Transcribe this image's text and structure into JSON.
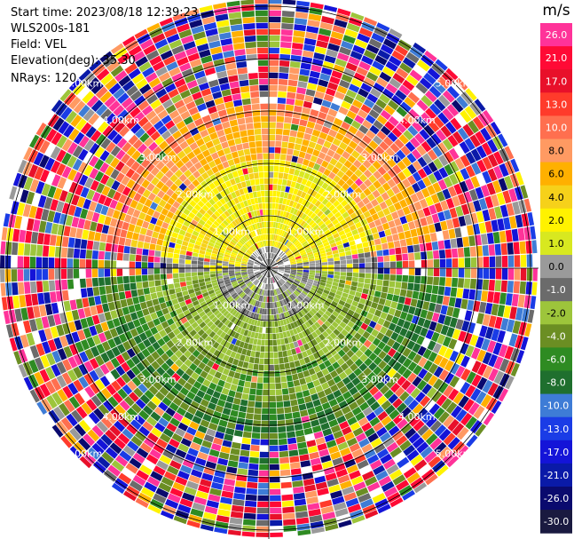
{
  "header": {
    "start_time": "Start time: 2023/08/18 12:39:23",
    "instrument": "WLS200s-181",
    "field": "Field: VEL",
    "elevation": "Elevation(deg): 35.30",
    "nrays": "NRays: 120"
  },
  "colorbar": {
    "unit": "m/s",
    "ticks": [
      "26.0",
      "21.0",
      "17.0",
      "13.0",
      "10.0",
      "8.0",
      "6.0",
      "4.0",
      "2.0",
      "1.0",
      "0.0",
      "-1.0",
      "-2.0",
      "-4.0",
      "-6.0",
      "-8.0",
      "-10.0",
      "-13.0",
      "-17.0",
      "-21.0",
      "-26.0",
      "-30.0"
    ],
    "colors": [
      "#ff3399",
      "#ff0a35",
      "#e8102a",
      "#ff3b2b",
      "#ff6f4f",
      "#ff9a62",
      "#ffb000",
      "#f6d11a",
      "#fff200",
      "#d8e820",
      "#9a9a9a",
      "#6b6b6b",
      "#9dc53b",
      "#6b8e23",
      "#2e8b22",
      "#1f6f2e",
      "#3e7cd6",
      "#1a3ce6",
      "#1414d8",
      "#0a1aa8",
      "#0a0a6e",
      "#1a1a40"
    ]
  },
  "ppi": {
    "range_rings": [
      "1.00km",
      "2.00km",
      "3.00km",
      "4.00km",
      "5.00km"
    ],
    "n_rays": 120
  }
}
